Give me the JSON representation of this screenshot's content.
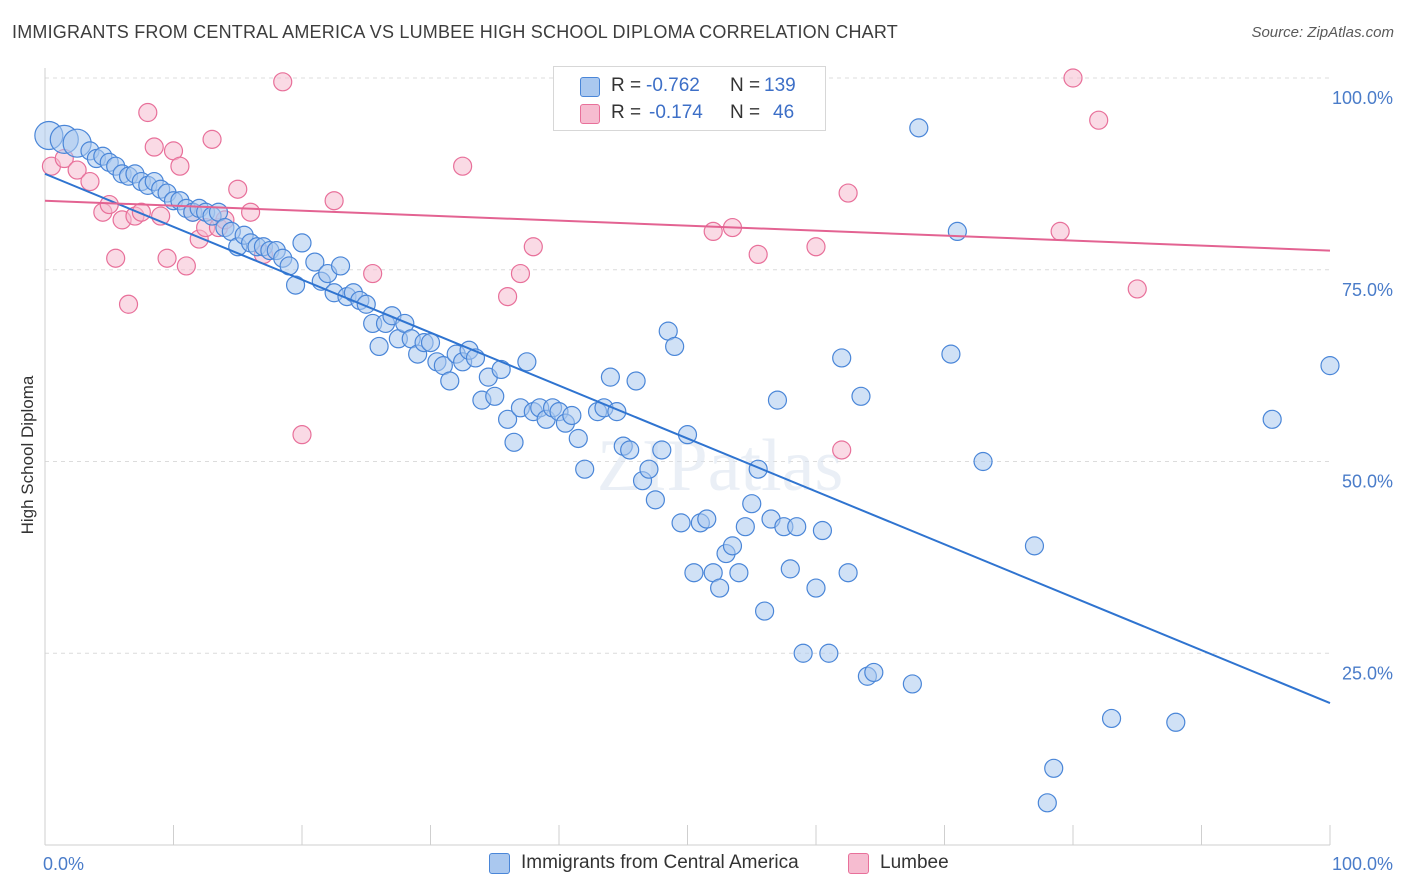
{
  "title": "IMMIGRANTS FROM CENTRAL AMERICA VS LUMBEE HIGH SCHOOL DIPLOMA CORRELATION CHART",
  "source": "Source: ZipAtlas.com",
  "watermark": "ZIPatlas",
  "legend": {
    "r_label": "R =",
    "n_label": "N =",
    "series": [
      {
        "r": "-0.762",
        "n": "139"
      },
      {
        "r": "-0.174",
        "n": "46"
      }
    ]
  },
  "chart_data": {
    "type": "scatter",
    "title": "IMMIGRANTS FROM CENTRAL AMERICA VS LUMBEE HIGH SCHOOL DIPLOMA CORRELATION CHART",
    "xlabel": "",
    "ylabel": "High School Diploma",
    "xlim": [
      0,
      100
    ],
    "ylim": [
      0,
      100
    ],
    "x_tick_labels": [
      "0.0%",
      "100.0%"
    ],
    "y_tick_labels": [
      "100.0%",
      "75.0%",
      "50.0%",
      "25.0%"
    ],
    "y_tick_values": [
      100,
      75,
      50,
      25
    ],
    "grid": true,
    "legend_position": "bottom",
    "colors": {
      "blue": "#4a86d8",
      "blue_fill": "#aac8ef",
      "pink": "#e8709a",
      "pink_fill": "#f6bcd0"
    },
    "series": [
      {
        "name": "Immigrants from Central America",
        "r": -0.762,
        "n": 139,
        "trend": [
          [
            0,
            87.5
          ],
          [
            100,
            18.5
          ]
        ],
        "points": [
          [
            0.3,
            92.5
          ],
          [
            1.5,
            92
          ],
          [
            2.5,
            91.5
          ],
          [
            3.5,
            90.5
          ],
          [
            4,
            89.5
          ],
          [
            4.5,
            89.8
          ],
          [
            5,
            89
          ],
          [
            5.5,
            88.5
          ],
          [
            6,
            87.5
          ],
          [
            6.5,
            87.2
          ],
          [
            7,
            87.5
          ],
          [
            7.5,
            86.5
          ],
          [
            8,
            86
          ],
          [
            8.5,
            86.5
          ],
          [
            9,
            85.5
          ],
          [
            9.5,
            85
          ],
          [
            10,
            84
          ],
          [
            10.5,
            84
          ],
          [
            11,
            83
          ],
          [
            11.5,
            82.5
          ],
          [
            12,
            83
          ],
          [
            12.5,
            82.5
          ],
          [
            13,
            82
          ],
          [
            13.5,
            82.5
          ],
          [
            14,
            80.5
          ],
          [
            14.5,
            80
          ],
          [
            15,
            78
          ],
          [
            15.5,
            79.5
          ],
          [
            16,
            78.5
          ],
          [
            16.5,
            78
          ],
          [
            17,
            78
          ],
          [
            17.5,
            77.5
          ],
          [
            18,
            77.5
          ],
          [
            18.5,
            76.5
          ],
          [
            19,
            75.5
          ],
          [
            19.5,
            73
          ],
          [
            20,
            78.5
          ],
          [
            21,
            76
          ],
          [
            21.5,
            73.5
          ],
          [
            22,
            74.5
          ],
          [
            22.5,
            72
          ],
          [
            23,
            75.5
          ],
          [
            23.5,
            71.5
          ],
          [
            24,
            72
          ],
          [
            24.5,
            71
          ],
          [
            25,
            70.5
          ],
          [
            25.5,
            68
          ],
          [
            26,
            65
          ],
          [
            26.5,
            68
          ],
          [
            27,
            69
          ],
          [
            27.5,
            66
          ],
          [
            28,
            68
          ],
          [
            28.5,
            66
          ],
          [
            29,
            64
          ],
          [
            29.5,
            65.5
          ],
          [
            30,
            65.5
          ],
          [
            30.5,
            63
          ],
          [
            31,
            62.5
          ],
          [
            31.5,
            60.5
          ],
          [
            32,
            64
          ],
          [
            32.5,
            63
          ],
          [
            33,
            64.5
          ],
          [
            33.5,
            63.5
          ],
          [
            34,
            58
          ],
          [
            34.5,
            61
          ],
          [
            35,
            58.5
          ],
          [
            35.5,
            62
          ],
          [
            36,
            55.5
          ],
          [
            36.5,
            52.5
          ],
          [
            37,
            57
          ],
          [
            37.5,
            63
          ],
          [
            38,
            56.5
          ],
          [
            38.5,
            57
          ],
          [
            39,
            55.5
          ],
          [
            39.5,
            57
          ],
          [
            40,
            56.5
          ],
          [
            40.5,
            55
          ],
          [
            41,
            56
          ],
          [
            41.5,
            53
          ],
          [
            42,
            49
          ],
          [
            43,
            56.5
          ],
          [
            43.5,
            57
          ],
          [
            44,
            61
          ],
          [
            44.5,
            56.5
          ],
          [
            45,
            52
          ],
          [
            45.5,
            51.5
          ],
          [
            46,
            60.5
          ],
          [
            46.5,
            47.5
          ],
          [
            47,
            49
          ],
          [
            47.5,
            45
          ],
          [
            48,
            51.5
          ],
          [
            48.5,
            67
          ],
          [
            49,
            65
          ],
          [
            49.5,
            42
          ],
          [
            50,
            53.5
          ],
          [
            50.5,
            35.5
          ],
          [
            51,
            42
          ],
          [
            51.5,
            42.5
          ],
          [
            52,
            35.5
          ],
          [
            52.5,
            33.5
          ],
          [
            53,
            38
          ],
          [
            53.5,
            39
          ],
          [
            54,
            35.5
          ],
          [
            54.5,
            41.5
          ],
          [
            55,
            44.5
          ],
          [
            55.5,
            49
          ],
          [
            56,
            30.5
          ],
          [
            56.5,
            42.5
          ],
          [
            57,
            58
          ],
          [
            57.5,
            41.5
          ],
          [
            58,
            36
          ],
          [
            58.5,
            41.5
          ],
          [
            59,
            25
          ],
          [
            60,
            33.5
          ],
          [
            60.5,
            41
          ],
          [
            61,
            25
          ],
          [
            62,
            63.5
          ],
          [
            62.5,
            35.5
          ],
          [
            63.5,
            58.5
          ],
          [
            64,
            22
          ],
          [
            64.5,
            22.5
          ],
          [
            67.5,
            21
          ],
          [
            68,
            93.5
          ],
          [
            70.5,
            64
          ],
          [
            71,
            80
          ],
          [
            73,
            50
          ],
          [
            77,
            39
          ],
          [
            78,
            5.5
          ],
          [
            78.5,
            10
          ],
          [
            83,
            16.5
          ],
          [
            88,
            16
          ],
          [
            95.5,
            55.5
          ],
          [
            100,
            62.5
          ]
        ]
      },
      {
        "name": "Lumbee",
        "r": -0.174,
        "n": 46,
        "trend": [
          [
            0,
            84
          ],
          [
            100,
            77.5
          ]
        ],
        "points": [
          [
            0.5,
            88.5
          ],
          [
            1.5,
            89.5
          ],
          [
            2.5,
            88
          ],
          [
            3.5,
            86.5
          ],
          [
            4.5,
            82.5
          ],
          [
            5,
            83.5
          ],
          [
            5.5,
            76.5
          ],
          [
            6,
            81.5
          ],
          [
            6.5,
            70.5
          ],
          [
            7,
            82
          ],
          [
            7.5,
            82.5
          ],
          [
            8,
            95.5
          ],
          [
            8.5,
            91
          ],
          [
            9,
            82
          ],
          [
            9.5,
            76.5
          ],
          [
            10,
            90.5
          ],
          [
            10.5,
            88.5
          ],
          [
            11,
            75.5
          ],
          [
            11.5,
            82.5
          ],
          [
            12,
            79
          ],
          [
            12.5,
            80.5
          ],
          [
            13,
            92
          ],
          [
            13.5,
            80.5
          ],
          [
            14,
            81.5
          ],
          [
            15,
            85.5
          ],
          [
            16,
            82.5
          ],
          [
            17,
            77
          ],
          [
            18.5,
            99.5
          ],
          [
            20,
            53.5
          ],
          [
            22.5,
            84
          ],
          [
            25.5,
            74.5
          ],
          [
            32.5,
            88.5
          ],
          [
            36,
            71.5
          ],
          [
            37,
            74.5
          ],
          [
            38,
            78
          ],
          [
            49,
            98
          ],
          [
            52,
            80
          ],
          [
            53.5,
            80.5
          ],
          [
            55.5,
            77
          ],
          [
            62.5,
            85
          ],
          [
            62,
            51.5
          ],
          [
            80,
            100
          ],
          [
            82,
            94.5
          ],
          [
            85,
            72.5
          ],
          [
            79,
            80
          ],
          [
            60,
            78
          ]
        ]
      }
    ]
  },
  "bottom_legend": [
    {
      "label": "Immigrants from Central America"
    },
    {
      "label": "Lumbee"
    }
  ]
}
